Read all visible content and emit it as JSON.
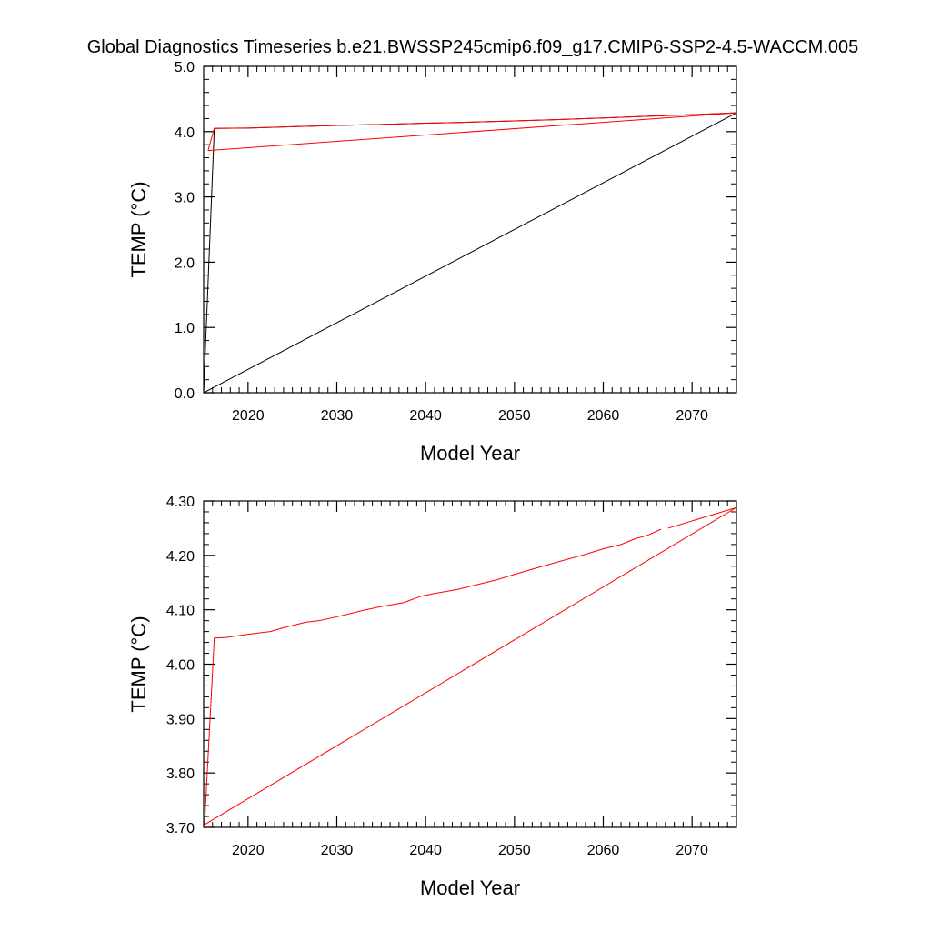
{
  "figure": {
    "title": "Global Diagnostics Timeseries b.e21.BWSSP245cmip6.f09_g17.CMIP6-SSP2-4.5-WACCM.005"
  },
  "chart_data": [
    {
      "type": "line",
      "title": "",
      "xlabel": "Model Year",
      "ylabel": "TEMP (°C)",
      "xlim": [
        2015,
        2075
      ],
      "ylim": [
        0.0,
        5.0
      ],
      "xticks": [
        2020,
        2030,
        2040,
        2050,
        2060,
        2070
      ],
      "xtick_labels": [
        "2020",
        "2030",
        "2040",
        "2050",
        "2060",
        "2070"
      ],
      "yticks": [
        0.0,
        1.0,
        2.0,
        3.0,
        4.0,
        5.0
      ],
      "ytick_labels": [
        "0.0",
        "1.0",
        "2.0",
        "3.0",
        "4.0",
        "5.0"
      ],
      "grid": false,
      "legend": "none",
      "series": [
        {
          "color": "#000000",
          "x": [
            2015,
            2016.2,
            2020,
            2025,
            2030,
            2035,
            2040,
            2045,
            2050,
            2055,
            2060,
            2065,
            2070,
            2075,
            2015
          ],
          "y": [
            0.0,
            4.05,
            4.055,
            4.075,
            4.095,
            4.11,
            4.13,
            4.145,
            4.165,
            4.185,
            4.21,
            4.235,
            4.26,
            4.288,
            0.0
          ]
        },
        {
          "color": "#ff0000",
          "x": [
            2015.5,
            2016.2,
            2020,
            2025,
            2030,
            2035,
            2040,
            2045,
            2050,
            2055,
            2060,
            2065,
            2070,
            2075,
            2015.5,
            2015.5
          ],
          "y": [
            3.71,
            4.05,
            4.055,
            4.075,
            4.095,
            4.11,
            4.13,
            4.145,
            4.165,
            4.185,
            4.21,
            4.235,
            4.26,
            4.288,
            3.71,
            3.71
          ]
        }
      ]
    },
    {
      "type": "line",
      "title": "",
      "xlabel": "Model Year",
      "ylabel": "TEMP (°C)",
      "xlim": [
        2015,
        2075
      ],
      "ylim": [
        3.7,
        4.3
      ],
      "xticks": [
        2020,
        2030,
        2040,
        2050,
        2060,
        2070
      ],
      "xtick_labels": [
        "2020",
        "2030",
        "2040",
        "2050",
        "2060",
        "2070"
      ],
      "yticks": [
        3.7,
        3.8,
        3.9,
        4.0,
        4.1,
        4.2,
        4.3
      ],
      "ytick_labels": [
        "3.70",
        "3.80",
        "3.90",
        "4.00",
        "4.10",
        "4.20",
        "4.30"
      ],
      "grid": false,
      "legend": "none",
      "series": [
        {
          "color": "#ff0000",
          "x": [
            2015.1,
            2016.2,
            2017.5,
            2020,
            2022.5,
            2024,
            2026.5,
            2028,
            2030,
            2031.5,
            2033,
            2035,
            2037.5,
            2039.5,
            2041,
            2043.5,
            2046,
            2048,
            2050,
            2052.5,
            2056,
            2058,
            2060,
            2062,
            2063.5,
            2065,
            2066.5
          ],
          "y": [
            3.705,
            4.048,
            4.049,
            4.055,
            4.06,
            4.067,
            4.077,
            4.08,
            4.087,
            4.093,
            4.099,
            4.106,
            4.113,
            4.125,
            4.13,
            4.137,
            4.147,
            4.155,
            4.165,
            4.177,
            4.193,
            4.202,
            4.212,
            4.22,
            4.23,
            4.237,
            4.248
          ]
        },
        {
          "color": "#ff0000",
          "x": [
            2067.3,
            2075
          ],
          "y": [
            4.25,
            4.288
          ]
        },
        {
          "color": "#ff0000",
          "x": [
            2075,
            2015.1
          ],
          "y": [
            4.288,
            3.705
          ]
        }
      ]
    }
  ]
}
